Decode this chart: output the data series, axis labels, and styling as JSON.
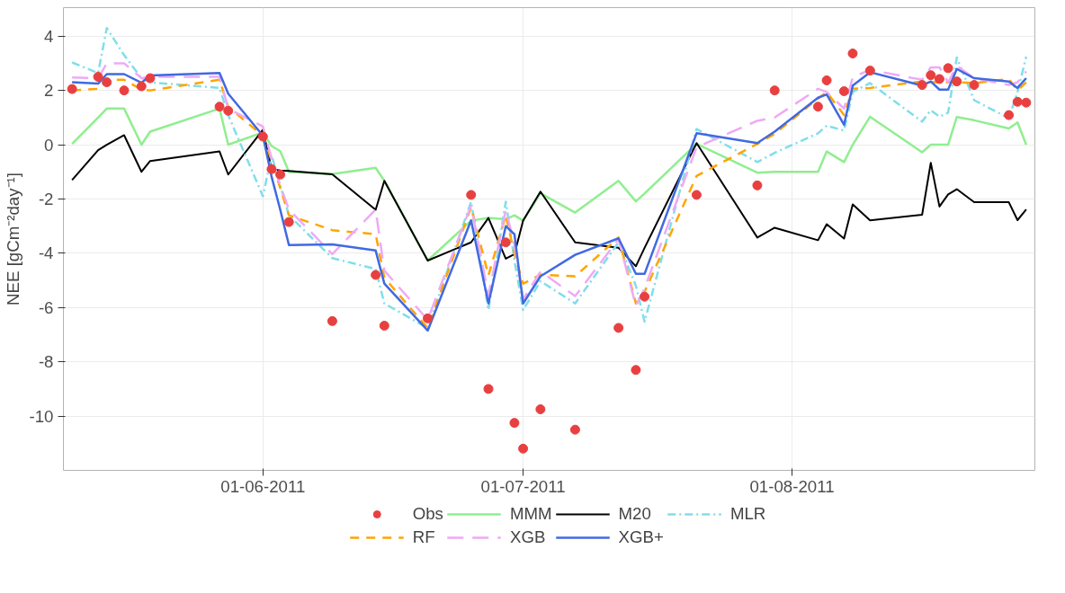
{
  "chart_data": {
    "type": "line",
    "ylabel": "NEE [gCm⁻²day⁻¹]",
    "x": [
      "2011-05-10",
      "2011-05-13",
      "2011-05-14",
      "2011-05-16",
      "2011-05-18",
      "2011-05-19",
      "2011-05-27",
      "2011-05-28",
      "2011-06-01",
      "2011-06-02",
      "2011-06-03",
      "2011-06-04",
      "2011-06-09",
      "2011-06-14",
      "2011-06-15",
      "2011-06-20",
      "2011-06-25",
      "2011-06-27",
      "2011-06-29",
      "2011-06-30",
      "2011-07-01",
      "2011-07-03",
      "2011-07-07",
      "2011-07-12",
      "2011-07-14",
      "2011-07-15",
      "2011-07-21",
      "2011-07-28",
      "2011-07-30",
      "2011-08-04",
      "2011-08-05",
      "2011-08-07",
      "2011-08-08",
      "2011-08-10",
      "2011-08-16",
      "2011-08-17",
      "2011-08-18",
      "2011-08-19",
      "2011-08-20",
      "2011-08-22",
      "2011-08-26",
      "2011-08-27",
      "2011-08-28"
    ],
    "series": [
      {
        "name": "Obs",
        "type": "scatter",
        "marker": "circle",
        "color": "#e84040",
        "values": [
          2.05,
          2.5,
          2.3,
          2.0,
          2.15,
          2.45,
          1.4,
          1.25,
          0.3,
          -0.9,
          -1.1,
          -2.85,
          -6.5,
          -4.8,
          -6.67,
          -6.4,
          -1.85,
          -9.0,
          -3.6,
          -10.25,
          -11.2,
          -9.75,
          -10.5,
          -6.75,
          -8.3,
          -5.6,
          -1.85,
          -1.5,
          2.0,
          1.4,
          2.37,
          1.97,
          3.36,
          2.73,
          2.2,
          2.56,
          2.42,
          2.82,
          2.33,
          2.2,
          1.09,
          1.58,
          1.55
        ]
      },
      {
        "name": "MMM",
        "line_style": "solid",
        "color": "#90ee90",
        "values": [
          0.03,
          1.0,
          1.33,
          1.33,
          0.0,
          0.48,
          1.33,
          0.0,
          0.45,
          -0.05,
          -0.24,
          -1.0,
          -1.08,
          -0.85,
          -1.33,
          -4.27,
          -2.8,
          -2.7,
          -2.75,
          -2.6,
          -2.8,
          -1.79,
          -2.5,
          -1.33,
          -2.09,
          -1.8,
          0.03,
          -1.03,
          -1.0,
          -1.0,
          -0.25,
          -0.64,
          0.0,
          1.03,
          -0.28,
          0.0,
          0.0,
          0.0,
          1.02,
          0.9,
          0.6,
          0.82,
          0.0
        ]
      },
      {
        "name": "M20",
        "line_style": "solid",
        "color": "#000000",
        "values": [
          -1.3,
          -0.2,
          0.0,
          0.35,
          -1.0,
          -0.6,
          -0.25,
          -1.1,
          0.55,
          -0.9,
          -0.95,
          -0.97,
          -1.09,
          -2.4,
          -1.33,
          -4.27,
          -3.6,
          -2.7,
          -4.2,
          -4.03,
          -2.8,
          -1.73,
          -3.6,
          -3.8,
          -4.48,
          -3.8,
          0.06,
          -3.42,
          -3.06,
          -3.52,
          -2.93,
          -3.46,
          -2.2,
          -2.79,
          -2.58,
          -0.67,
          -2.28,
          -1.83,
          -1.64,
          -2.12,
          -2.12,
          -2.78,
          -2.39
        ]
      },
      {
        "name": "MLR",
        "line_style": "dashdot",
        "color": "#80deea",
        "values": [
          3.03,
          2.64,
          4.3,
          3.3,
          2.45,
          2.3,
          2.09,
          1.09,
          -1.9,
          -0.39,
          -1.5,
          -2.6,
          -4.18,
          -4.58,
          -5.85,
          -6.76,
          -2.1,
          -6.09,
          -2.1,
          -4.27,
          -6.09,
          -5.03,
          -5.85,
          -3.6,
          -5.2,
          -6.52,
          0.58,
          -0.64,
          -0.3,
          0.42,
          0.7,
          0.52,
          1.94,
          2.27,
          0.85,
          1.27,
          1.03,
          1.18,
          3.21,
          1.64,
          0.97,
          1.94,
          3.24
        ]
      },
      {
        "name": "RF",
        "line_style": "dashed",
        "color": "#ffa500",
        "values": [
          2.0,
          2.06,
          2.39,
          2.39,
          2.03,
          2.0,
          2.39,
          1.39,
          0.33,
          -0.58,
          -1.6,
          -2.6,
          -3.15,
          -3.3,
          -4.9,
          -6.76,
          -2.3,
          -4.82,
          -2.6,
          -4.03,
          -5.12,
          -4.79,
          -4.85,
          -3.42,
          -5.85,
          -5.42,
          -1.15,
          0.03,
          0.4,
          1.7,
          1.94,
          1.09,
          2.06,
          2.09,
          2.33,
          2.3,
          2.3,
          2.3,
          2.3,
          2.27,
          2.42,
          2.0,
          2.3
        ]
      },
      {
        "name": "XGB",
        "line_style": "longdash",
        "color": "#eeaaf5",
        "values": [
          2.48,
          2.45,
          3.0,
          3.0,
          2.45,
          2.5,
          2.5,
          1.33,
          0.67,
          -0.5,
          -1.5,
          -2.39,
          -4.03,
          -2.39,
          -4.64,
          -6.45,
          -2.24,
          -5.55,
          -2.39,
          -3.7,
          -5.7,
          -4.67,
          -5.58,
          -3.48,
          -5.94,
          -5.3,
          -0.09,
          0.88,
          1.0,
          2.06,
          1.94,
          1.33,
          2.48,
          2.76,
          2.39,
          2.85,
          2.85,
          2.3,
          2.9,
          2.45,
          2.2,
          2.3,
          2.7
        ]
      },
      {
        "name": "XGB+",
        "line_style": "solid",
        "color": "#4169e1",
        "values": [
          2.3,
          2.25,
          2.6,
          2.6,
          2.28,
          2.55,
          2.64,
          1.88,
          0.33,
          -1.18,
          -2.4,
          -3.7,
          -3.67,
          -3.9,
          -5.12,
          -6.85,
          -2.79,
          -5.85,
          -3.0,
          -3.3,
          -5.85,
          -4.85,
          -4.06,
          -3.45,
          -4.76,
          -4.76,
          0.42,
          0.06,
          0.48,
          1.73,
          1.85,
          0.73,
          2.18,
          2.67,
          2.18,
          2.33,
          2.03,
          2.03,
          2.79,
          2.45,
          2.33,
          2.09,
          2.45
        ]
      }
    ],
    "xlim": [
      "2011-05-09",
      "2011-08-29"
    ],
    "xticks": [
      {
        "value": "2011-06-01",
        "label": "01-06-2011"
      },
      {
        "value": "2011-07-01",
        "label": "01-07-2011"
      },
      {
        "value": "2011-08-01",
        "label": "01-08-2011"
      }
    ],
    "ylim": [
      -12,
      5.05
    ],
    "yticks": [
      -10,
      -8,
      -6,
      -4,
      -2,
      0,
      2,
      4
    ],
    "grid": true,
    "legend": "bottom"
  }
}
